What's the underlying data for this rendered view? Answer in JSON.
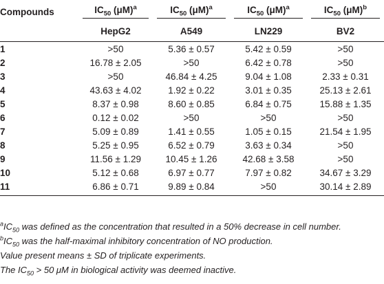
{
  "table": {
    "header": {
      "compounds": "Compounds",
      "ic_prefix": "IC",
      "ic_sub": "50",
      "ic_suffix": " (μM)",
      "columns": [
        {
          "sup": "a",
          "cell_line": "HepG2"
        },
        {
          "sup": "a",
          "cell_line": "A549"
        },
        {
          "sup": "a",
          "cell_line": "LN229"
        },
        {
          "sup": "b",
          "cell_line": "BV2"
        }
      ]
    },
    "rows": [
      {
        "id": "1",
        "values": [
          ">50",
          "5.36 ± 0.57",
          "5.42 ± 0.59",
          ">50"
        ]
      },
      {
        "id": "2",
        "values": [
          "16.78 ± 2.05",
          ">50",
          "6.42 ± 0.78",
          ">50"
        ]
      },
      {
        "id": "3",
        "values": [
          ">50",
          "46.84 ± 4.25",
          "9.04 ± 1.08",
          "2.33 ± 0.31"
        ]
      },
      {
        "id": "4",
        "values": [
          "43.63 ± 4.02",
          "1.92 ± 0.22",
          "3.01 ± 0.35",
          "25.13 ± 2.61"
        ]
      },
      {
        "id": "5",
        "values": [
          "8.37 ± 0.98",
          "8.60 ± 0.85",
          "6.84 ± 0.75",
          "15.88 ± 1.35"
        ]
      },
      {
        "id": "6",
        "values": [
          "0.12 ± 0.02",
          ">50",
          ">50",
          ">50"
        ]
      },
      {
        "id": "7",
        "values": [
          "5.09 ± 0.89",
          "1.41 ± 0.55",
          "1.05 ± 0.15",
          "21.54 ± 1.95"
        ]
      },
      {
        "id": "8",
        "values": [
          "5.25 ± 0.95",
          "6.52 ± 0.79",
          "3.63 ± 0.34",
          ">50"
        ]
      },
      {
        "id": "9",
        "values": [
          "11.56 ± 1.29",
          "10.45 ± 1.26",
          "42.68 ± 3.58",
          ">50"
        ]
      },
      {
        "id": "10",
        "values": [
          "5.12 ± 0.68",
          "6.97 ± 0.77",
          "7.97 ± 0.82",
          "34.67 ± 3.29"
        ]
      },
      {
        "id": "11",
        "values": [
          "6.86 ± 0.71",
          "9.89 ± 0.84",
          ">50",
          "30.14 ± 2.89"
        ]
      }
    ]
  },
  "footnotes": {
    "a": {
      "mark": "a",
      "ic": "IC",
      "sub": "50",
      "text": " was defined as the concentration that resulted in a 50% decrease in cell number."
    },
    "b": {
      "mark": "b",
      "ic": "IC",
      "sub": "50",
      "text": " was the half-maximal inhibitory concentration of NO production."
    },
    "sd": {
      "text": "Value present means ± SD of triplicate experiments."
    },
    "inactive": {
      "pre": "The ",
      "ic": "IC",
      "sub": "50",
      "text": " > 50 μM in biological activity was deemed inactive."
    }
  }
}
